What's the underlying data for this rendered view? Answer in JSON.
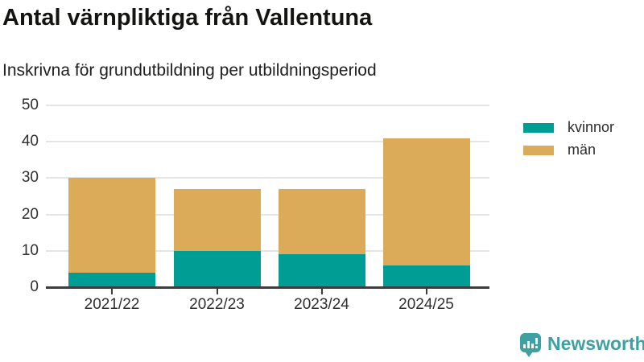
{
  "chart_data": {
    "type": "bar",
    "stacked": true,
    "title": "Antal värnpliktiga från Vallentuna",
    "subtitle": "Inskrivna för grundutbildning per utbildningsperiod",
    "categories": [
      "2021/22",
      "2022/23",
      "2023/24",
      "2024/25"
    ],
    "series": [
      {
        "name": "kvinnor",
        "color": "#009d95",
        "values": [
          4,
          10,
          9,
          6
        ]
      },
      {
        "name": "män",
        "color": "#dbab5a",
        "values": [
          26,
          17,
          18,
          35
        ]
      }
    ],
    "totals": [
      30,
      27,
      27,
      41
    ],
    "xlabel": "",
    "ylabel": "",
    "ylim": [
      0,
      50
    ],
    "yticks": [
      0,
      10,
      20,
      30,
      40,
      50
    ],
    "grid": true,
    "legend_position": "right",
    "axis_color": "#3d3d3d",
    "grid_color": "#e4e4e4"
  },
  "branding": {
    "logo_text": "Newsworthy",
    "logo_color": "#3fa0a1",
    "logo_icon": "bar-chart-speech-bubble-icon"
  }
}
